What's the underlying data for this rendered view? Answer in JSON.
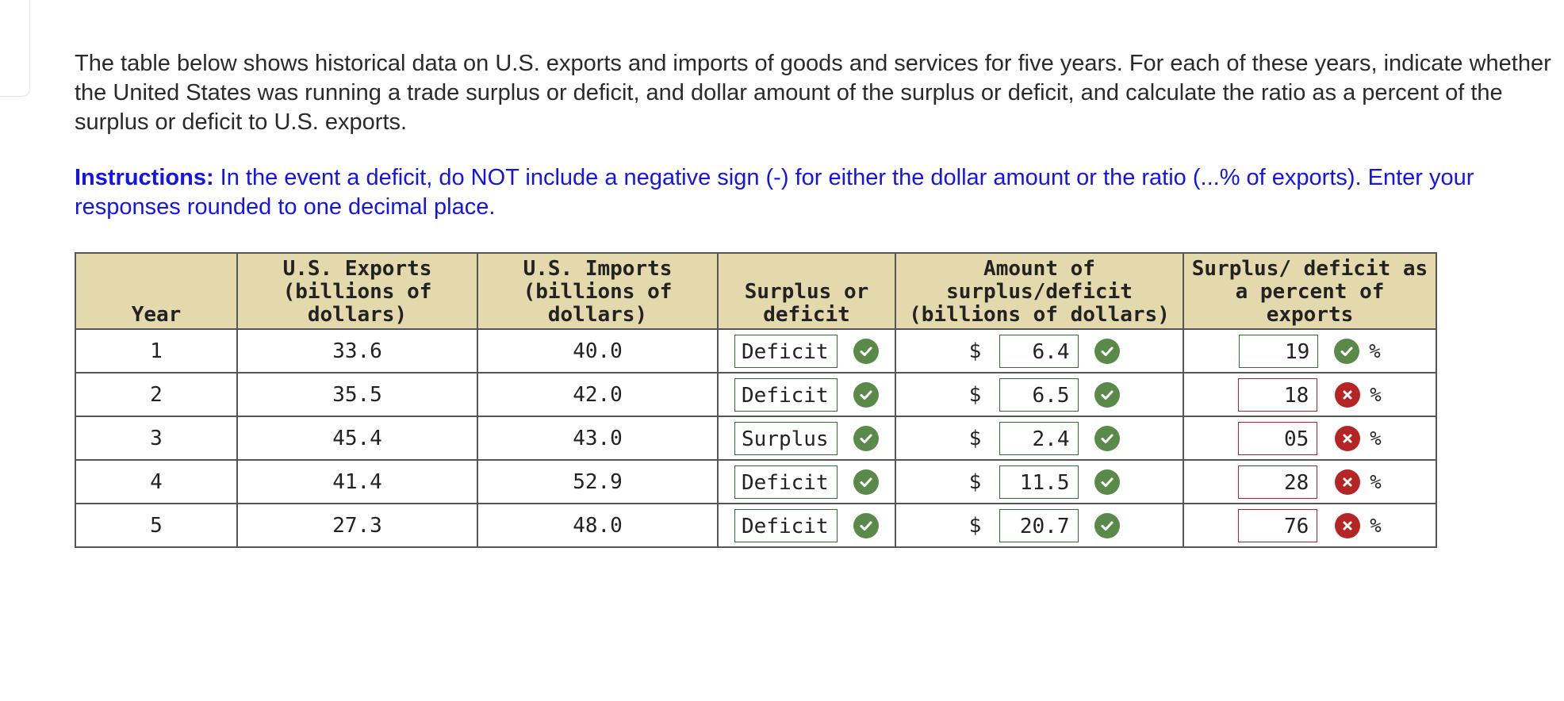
{
  "question": "The table below shows historical data on U.S. exports and imports of goods and services for five years. For each of these years, indicate whether the United States was running a trade surplus or deficit, and dollar amount of the surplus or deficit, and calculate the ratio as a percent of the surplus or deficit to U.S. exports.",
  "instructions": {
    "label": "Instructions:",
    "text": " In the event a deficit, do NOT include a negative sign (-) for either the dollar amount or the ratio (...% of exports). Enter your responses rounded to one decimal place."
  },
  "table": {
    "headers": {
      "year": "Year",
      "exports": "U.S. Exports\n(billions of\ndollars)",
      "imports": "U.S. Imports\n(billions of\ndollars)",
      "surplus_deficit": "Surplus or\ndeficit",
      "amount": "Amount of\nsurplus/deficit\n(billions of dollars)",
      "percent": "Surplus/ deficit as\na percent of exports"
    },
    "currency_symbol": "$",
    "percent_symbol": "%",
    "rows": [
      {
        "year": "1",
        "exports": "33.6",
        "imports": "40.0",
        "surplus_deficit": "Deficit",
        "sd_status": "correct",
        "amount": "6.4",
        "amount_status": "correct",
        "percent": "19",
        "percent_status": "correct"
      },
      {
        "year": "2",
        "exports": "35.5",
        "imports": "42.0",
        "surplus_deficit": "Deficit",
        "sd_status": "correct",
        "amount": "6.5",
        "amount_status": "correct",
        "percent": "18",
        "percent_status": "incorrect"
      },
      {
        "year": "3",
        "exports": "45.4",
        "imports": "43.0",
        "surplus_deficit": "Surplus",
        "sd_status": "correct",
        "amount": "2.4",
        "amount_status": "correct",
        "percent": "05",
        "percent_status": "incorrect"
      },
      {
        "year": "4",
        "exports": "41.4",
        "imports": "52.9",
        "surplus_deficit": "Deficit",
        "sd_status": "correct",
        "amount": "11.5",
        "amount_status": "correct",
        "percent": "28",
        "percent_status": "incorrect"
      },
      {
        "year": "5",
        "exports": "27.3",
        "imports": "48.0",
        "surplus_deficit": "Deficit",
        "sd_status": "correct",
        "amount": "20.7",
        "amount_status": "correct",
        "percent": "76",
        "percent_status": "incorrect"
      }
    ]
  },
  "icons": {
    "correct": "check-circle-icon",
    "incorrect": "x-circle-icon"
  },
  "colors": {
    "instructions": "#1414e6",
    "header_bg": "#e3d9ad",
    "correct": "#5a8a4a",
    "incorrect": "#b52525"
  }
}
